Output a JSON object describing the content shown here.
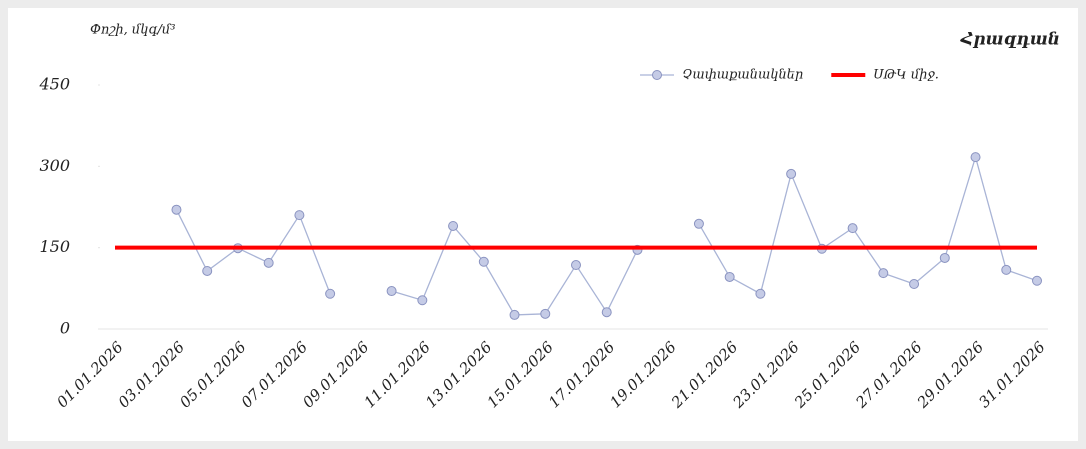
{
  "chart_data": {
    "type": "line",
    "title": "Հրազդան",
    "y_label": "Փոշի, մկգ/մ³",
    "categories": [
      "01.01.2026",
      null,
      "03.01.2026",
      null,
      "05.01.2026",
      null,
      "07.01.2026",
      null,
      "09.01.2026",
      null,
      "11.01.2026",
      null,
      "13.01.2026",
      null,
      "15.01.2026",
      null,
      "17.01.2026",
      null,
      "19.01.2026",
      null,
      "21.01.2026",
      null,
      "23.01.2026",
      null,
      "25.01.2026",
      null,
      "27.01.2026",
      null,
      "29.01.2026",
      null,
      "31.01.2026"
    ],
    "series": [
      {
        "name": "Չափաքանակներ",
        "color": "#a9b4d6",
        "marker": true,
        "values": [
          null,
          null,
          220,
          107,
          149,
          122,
          210,
          65,
          null,
          70,
          53,
          190,
          124,
          26,
          28,
          118,
          31,
          146,
          null,
          194,
          96,
          65,
          286,
          148,
          186,
          103,
          83,
          131,
          317,
          109,
          89
        ]
      },
      {
        "name": "ՍԹԿ միջ.",
        "color": "#ff0000",
        "marker": false,
        "values": [
          150,
          150,
          150,
          150,
          150,
          150,
          150,
          150,
          150,
          150,
          150,
          150,
          150,
          150,
          150,
          150,
          150,
          150,
          150,
          150,
          150,
          150,
          150,
          150,
          150,
          150,
          150,
          150,
          150,
          150,
          150
        ]
      }
    ],
    "ylim": [
      0,
      450
    ],
    "yticks": [
      0,
      150,
      300,
      450
    ],
    "legend": "top-right"
  }
}
